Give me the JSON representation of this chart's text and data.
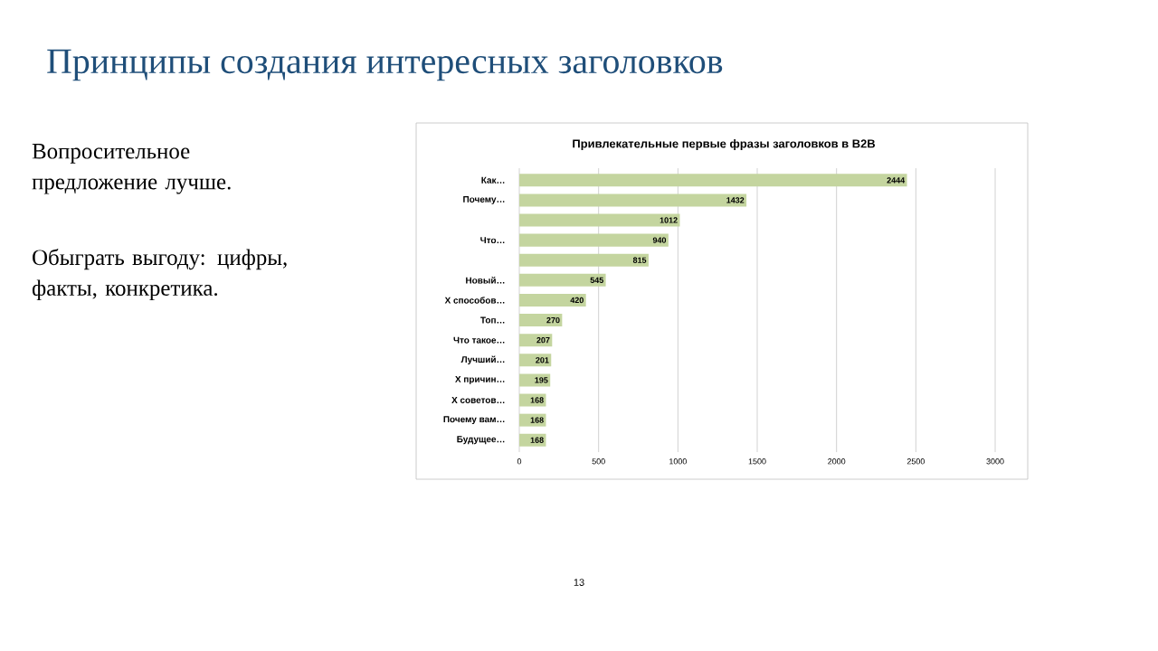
{
  "chart_data": {
    "type": "bar",
    "orientation": "horizontal",
    "title": "Привлекательные первые фразы заголовков в B2B",
    "categories": [
      "Как…",
      "Почему…",
      null,
      "Что…",
      null,
      "Новый…",
      "Х способов…",
      "Топ…",
      "Что такое…",
      "Лучший…",
      "Х причин…",
      "Х советов…",
      "Почему вам…",
      "Будущее…"
    ],
    "values": [
      2444,
      1432,
      1012,
      940,
      815,
      545,
      420,
      270,
      207,
      201,
      195,
      168,
      168,
      168
    ],
    "color": "#c4d59f",
    "xlim": [
      0,
      3000
    ],
    "xticks": [
      0,
      500,
      1000,
      1500,
      2000,
      2500,
      3000
    ],
    "grid": "x",
    "data_labels": true,
    "annotations": [
      "Принципы создания интересных заголовков",
      "Вопросительное предложение лучше.",
      "Обыграть выгоду: цифры, факты, конкретика.",
      "13"
    ]
  }
}
